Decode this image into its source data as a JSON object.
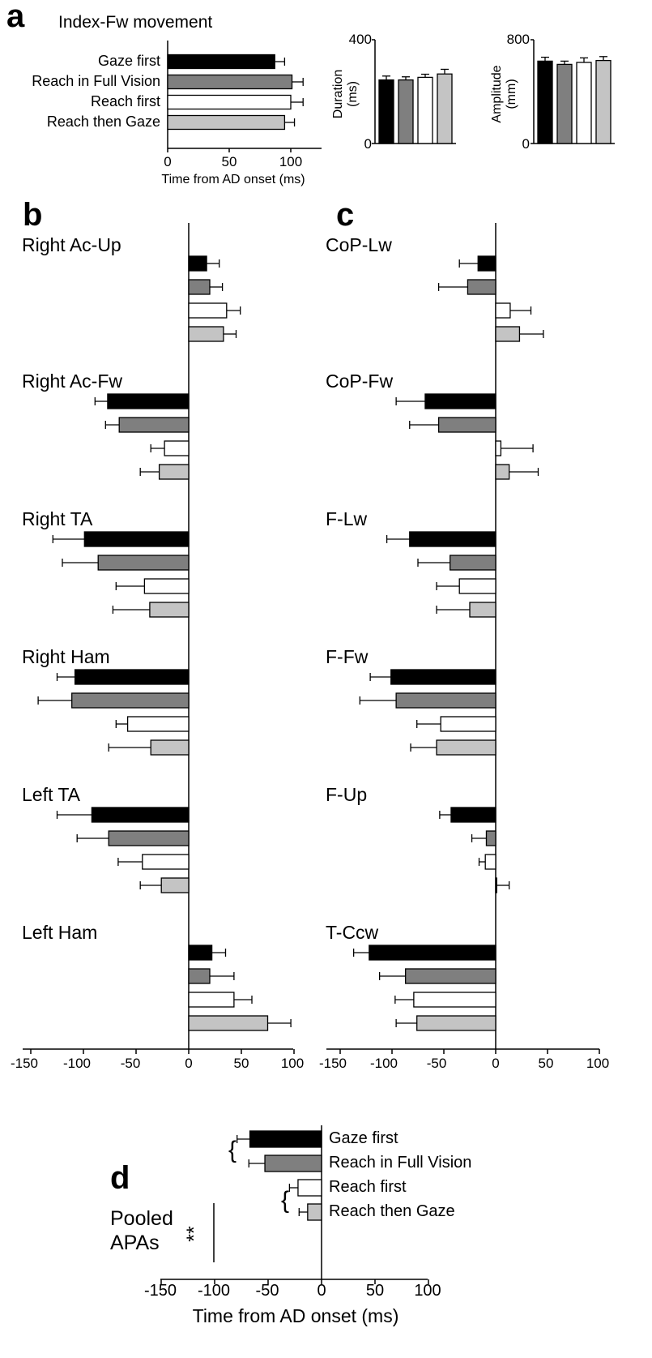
{
  "colors": {
    "Gaze first": "#000000",
    "Reach in Full Vision": "#7f7f7f",
    "Reach first": "#ffffff",
    "Reach then Gaze": "#c4c4c4"
  },
  "chart_data": [
    {
      "id": "a_main",
      "type": "bar",
      "orientation": "horizontal",
      "panel": "a",
      "title": "Index-Fw movement",
      "categories": [
        "Gaze first",
        "Reach in Full Vision",
        "Reach first",
        "Reach then Gaze"
      ],
      "values": [
        87,
        101,
        100,
        95
      ],
      "errors": [
        8,
        9,
        10,
        8
      ],
      "xlabel": "Time from AD onset (ms)",
      "xlim": [
        0,
        125
      ],
      "xticks": [
        "0",
        "50",
        "100"
      ]
    },
    {
      "id": "a_duration",
      "type": "bar",
      "panel": "a",
      "categories": [
        "Gaze first",
        "Reach in Full Vision",
        "Reach first",
        "Reach then Gaze"
      ],
      "values": [
        245,
        245,
        255,
        268
      ],
      "errors": [
        15,
        12,
        12,
        18
      ],
      "ylabel": "Duration (ms)",
      "ylim": [
        0,
        400
      ],
      "yticks": [
        "0",
        "400"
      ]
    },
    {
      "id": "a_amplitude",
      "type": "bar",
      "panel": "a",
      "categories": [
        "Gaze first",
        "Reach in Full Vision",
        "Reach first",
        "Reach then Gaze"
      ],
      "values": [
        635,
        610,
        625,
        640
      ],
      "errors": [
        30,
        25,
        35,
        30
      ],
      "ylabel": "Amplitude (mm)",
      "ylim": [
        0,
        800
      ],
      "yticks": [
        "0",
        "800"
      ]
    },
    {
      "id": "b",
      "type": "bar",
      "orientation": "horizontal",
      "panel": "b",
      "xlim": [
        -165,
        100
      ],
      "xticks": [
        "-150",
        "-100",
        "-50",
        "0",
        "50",
        "100"
      ],
      "groups": [
        {
          "label": "Right Ac-Up",
          "values": [
            17,
            20,
            36,
            33
          ],
          "errors": [
            12,
            12,
            13,
            12
          ]
        },
        {
          "label": "Right Ac-Fw",
          "values": [
            -77,
            -66,
            -23,
            -28
          ],
          "errors": [
            12,
            13,
            13,
            18
          ]
        },
        {
          "label": "Right TA",
          "values": [
            -99,
            -86,
            -42,
            -37
          ],
          "errors": [
            30,
            34,
            27,
            35
          ]
        },
        {
          "label": "Right Ham",
          "values": [
            -108,
            -111,
            -58,
            -36
          ],
          "errors": [
            17,
            32,
            11,
            40
          ]
        },
        {
          "label": "Left TA",
          "values": [
            -92,
            -76,
            -44,
            -26
          ],
          "errors": [
            33,
            30,
            23,
            20
          ]
        },
        {
          "label": "Left Ham",
          "values": [
            22,
            20,
            43,
            75
          ],
          "errors": [
            13,
            23,
            17,
            22
          ]
        }
      ]
    },
    {
      "id": "c",
      "type": "bar",
      "orientation": "horizontal",
      "panel": "c",
      "xlim": [
        -150,
        100
      ],
      "xticks": [
        "-150",
        "-100",
        "-50",
        "0",
        "50",
        "100"
      ],
      "groups": [
        {
          "label": "CoP-Lw",
          "values": [
            -17,
            -27,
            14,
            23
          ],
          "errors": [
            18,
            28,
            20,
            23
          ]
        },
        {
          "label": "CoP-Fw",
          "values": [
            -68,
            -55,
            5,
            13
          ],
          "errors": [
            28,
            28,
            31,
            28
          ]
        },
        {
          "label": "F-Lw",
          "values": [
            -83,
            -44,
            -35,
            -25
          ],
          "errors": [
            22,
            31,
            22,
            32
          ]
        },
        {
          "label": "F-Fw",
          "values": [
            -101,
            -96,
            -53,
            -57
          ],
          "errors": [
            20,
            35,
            23,
            25
          ]
        },
        {
          "label": "F-Up",
          "values": [
            -43,
            -9,
            -10,
            1
          ],
          "errors": [
            11,
            14,
            6,
            12
          ]
        },
        {
          "label": "T-Ccw",
          "values": [
            -122,
            -87,
            -79,
            -76
          ],
          "errors": [
            15,
            25,
            18,
            20
          ]
        }
      ]
    },
    {
      "id": "d",
      "type": "bar",
      "orientation": "horizontal",
      "panel": "d",
      "title": "Pooled APAs",
      "categories": [
        "Gaze first",
        "Reach in Full Vision",
        "Reach first",
        "Reach then Gaze"
      ],
      "values": [
        -67,
        -53,
        -22,
        -13
      ],
      "errors": [
        12,
        15,
        8,
        8
      ],
      "xlabel": "Time from AD onset (ms)",
      "xlim": [
        -150,
        100
      ],
      "xticks": [
        "-150",
        "-100",
        "-50",
        "0",
        "50",
        "100"
      ],
      "significance": "**"
    }
  ],
  "labels": {
    "panel_a": "a",
    "panel_b": "b",
    "panel_c": "c",
    "panel_d": "d",
    "a_title": "Index-Fw movement",
    "a_cats": [
      "Gaze first",
      "Reach in Full Vision",
      "Reach first",
      "Reach then Gaze"
    ],
    "a_xticks": [
      "0",
      "50",
      "100"
    ],
    "a_xlabel": "Time from AD onset (ms)",
    "dur_yl1": "Duration",
    "dur_yl2": "(ms)",
    "dur_yticks": [
      "0",
      "400"
    ],
    "amp_yl1": "Amplitude",
    "amp_yl2": "(mm)",
    "amp_yticks": [
      "0",
      "800"
    ],
    "b_labels": [
      "Right Ac-Up",
      "Right Ac-Fw",
      "Right TA",
      "Right Ham",
      "Left TA",
      "Left Ham"
    ],
    "c_labels": [
      "CoP-Lw",
      "CoP-Fw",
      "F-Lw",
      "F-Fw",
      "F-Up",
      "T-Ccw"
    ],
    "bc_xticks": [
      "-150",
      "-100",
      "-50",
      "0",
      "50",
      "100"
    ],
    "d_pooled1": "Pooled",
    "d_pooled2": "APAs",
    "d_stars": "**",
    "d_cats": [
      "Gaze first",
      "Reach in Full Vision",
      "Reach first",
      "Reach then Gaze"
    ],
    "d_xticks": [
      "-150",
      "-100",
      "-50",
      "0",
      "50",
      "100"
    ],
    "d_xlabel": "Time from AD onset (ms)"
  }
}
